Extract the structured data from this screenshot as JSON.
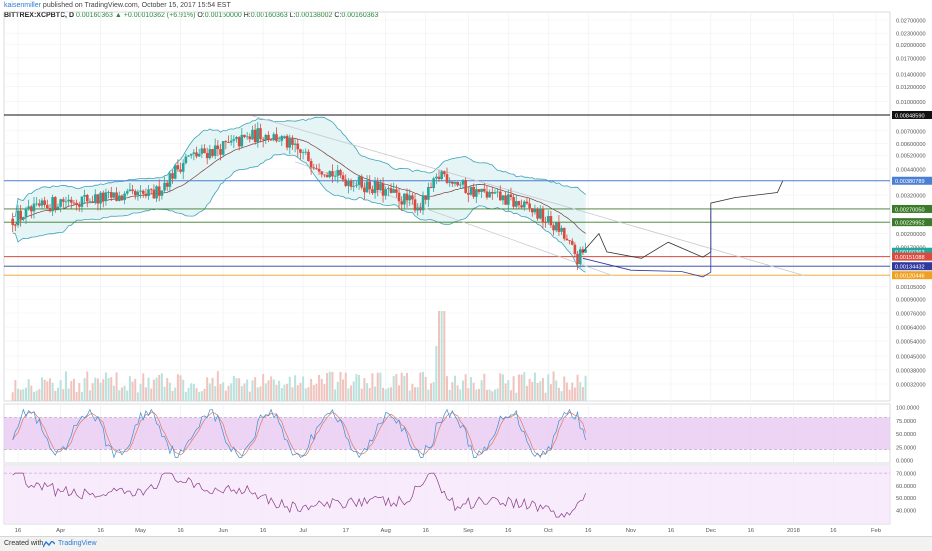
{
  "header": {
    "author": "kaisenmiller",
    "published": "published on TradingView.com, October 15, 2017 15:54 EST",
    "symbol": "BITTREX:XCPBTC, D",
    "last": "0.00160363",
    "change": "+0.00010362 (+6.91%)",
    "o_label": "O:",
    "o_value": "0.00150000",
    "h_label": "H:",
    "h_value": "0.00160363",
    "l_label": "L:",
    "l_value": "0.00138002",
    "c_label": "C:",
    "c_value": "0.00160363"
  },
  "footer": {
    "created": "Created with",
    "brand": "TradingView"
  },
  "colors": {
    "up": "#26a69a",
    "down": "#d94a3f",
    "bb": "#3ea3b8",
    "bbfill": "#e5f4f5",
    "ma": "#7a3b3b",
    "stoch_k": "#3c8fd1",
    "stoch_d": "#e0795e",
    "stoch_band": "#e7c6f2",
    "rsi": "#8b3d86",
    "rsi_band": "#f5e6fb"
  },
  "chart_data": {
    "type": "candlestick",
    "scale": "log",
    "price_axis_labels": [
      "0.02700000",
      "0.02300000",
      "0.02000000",
      "0.01700000",
      "0.01400000",
      "0.01200000",
      "0.01000000",
      "0.00700000",
      "0.00600000",
      "0.00520000",
      "0.00440000",
      "0.00320000",
      "0.00200000",
      "0.00170000",
      "0.00105000",
      "0.00090000",
      "0.00076000",
      "0.00064000",
      "0.00054000",
      "0.00045000",
      "0.00038000",
      "0.00032000"
    ],
    "price_axis_values": [
      0.027,
      0.023,
      0.02,
      0.017,
      0.014,
      0.012,
      0.01,
      0.007,
      0.006,
      0.0052,
      0.0044,
      0.0032,
      0.002,
      0.0017,
      0.00105,
      0.0009,
      0.00076,
      0.00064,
      0.00054,
      0.00045,
      0.00038,
      0.00032
    ],
    "highlighted_levels": [
      {
        "label": "0.00848590",
        "value": 0.0084859,
        "color": "#111111"
      },
      {
        "label": "0.00380789",
        "value": 0.00380789,
        "color": "#4a7fd4"
      },
      {
        "label": "0.00270050",
        "value": 0.0027005,
        "color": "#3b7a2a"
      },
      {
        "label": "0.00229952",
        "value": 0.00229952,
        "color": "#3b7a2a"
      },
      {
        "label": "0.00160363",
        "value": 0.00160363,
        "color": "#26a69a"
      },
      {
        "label": "0.00151088",
        "value": 0.00151088,
        "color": "#d94a3f"
      },
      {
        "label": "0.00134432",
        "value": 0.00134432,
        "color": "#2e3a9e"
      },
      {
        "label": "0.00120446",
        "value": 0.00120446,
        "color": "#f0a020"
      }
    ],
    "x_tick_labels": [
      "16",
      "Apr",
      "16",
      "May",
      "16",
      "Jun",
      "16",
      "Jul",
      "17",
      "Aug",
      "16",
      "Sep",
      "16",
      "Oct",
      "16",
      "Nov",
      "16",
      "Dec",
      "16",
      "2018",
      "16",
      "Feb"
    ],
    "x_tick_dates": [
      "2017-03-16",
      "2017-04-01",
      "2017-04-16",
      "2017-05-01",
      "2017-05-16",
      "2017-06-01",
      "2017-06-16",
      "2017-07-01",
      "2017-07-17",
      "2017-08-01",
      "2017-08-16",
      "2017-09-01",
      "2017-09-16",
      "2017-10-01",
      "2017-10-16",
      "2017-11-01",
      "2017-11-16",
      "2017-12-01",
      "2017-12-16",
      "2018-01-01",
      "2018-01-16",
      "2018-02-01"
    ],
    "stochastic": {
      "axis_labels": [
        "100.0000",
        "75.0000",
        "50.0000",
        "25.0000",
        "0.0000"
      ],
      "axis_values": [
        100,
        75,
        50,
        25,
        0
      ],
      "band": [
        20,
        80
      ]
    },
    "rsi": {
      "axis_labels": [
        "70.0000",
        "60.0000",
        "50.0000",
        "40.0000"
      ],
      "axis_values": [
        70,
        60,
        50,
        40
      ],
      "band": [
        30,
        70
      ]
    },
    "volume_axis_note": "shares price axis labels above"
  }
}
